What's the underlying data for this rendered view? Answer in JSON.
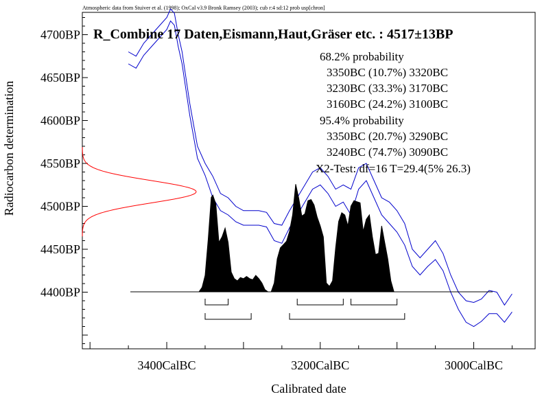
{
  "header_note": "Atmospheric data from Stuiver et al. (1998); OxCal v3.9 Bronk Ramsey (2003); cub r:4 sd:12 prob usp[chron]",
  "chart_data": {
    "type": "area",
    "title": "R_Combine 17 Daten,Eismann,Haut,Gräser etc. : 4517±13BP",
    "xlabel": "Calibrated date",
    "ylabel": "Radiocarbon determination",
    "x_ticks": [
      {
        "value": 3400,
        "label": "3400CalBC"
      },
      {
        "value": 3200,
        "label": "3200CalBC"
      },
      {
        "value": 3000,
        "label": "3000CalBC"
      }
    ],
    "y_ticks": [
      {
        "value": 4700,
        "label": "4700BP"
      },
      {
        "value": 4650,
        "label": "4650BP"
      },
      {
        "value": 4600,
        "label": "4600BP"
      },
      {
        "value": 4550,
        "label": "4550BP"
      },
      {
        "value": 4500,
        "label": "4500BP"
      },
      {
        "value": 4450,
        "label": "4450BP"
      },
      {
        "value": 4400,
        "label": "4400BP"
      }
    ],
    "xlim_calbc": [
      3510,
      2920
    ],
    "ylim_bp": [
      4334,
      4726
    ],
    "radiocarbon": {
      "mean_bp": 4517,
      "sd": 13
    },
    "annotations": [
      "68.2% probability",
      "3350BC (10.7%) 3320BC",
      "3230BC (33.3%) 3170BC",
      "3160BC (24.2%) 3100BC",
      "95.4% probability",
      "3350BC (20.7%) 3290BC",
      "3240BC (74.7%) 3090BC",
      "X2-Test: df=16 T=29.4(5% 26.3)"
    ],
    "calibration_curve": {
      "year_calbc": [
        3450,
        3440,
        3430,
        3420,
        3410,
        3400,
        3395,
        3390,
        3385,
        3380,
        3370,
        3360,
        3350,
        3340,
        3330,
        3320,
        3310,
        3300,
        3290,
        3280,
        3270,
        3260,
        3250,
        3240,
        3230,
        3220,
        3210,
        3200,
        3190,
        3180,
        3170,
        3160,
        3150,
        3140,
        3130,
        3120,
        3110,
        3100,
        3090,
        3080,
        3070,
        3060,
        3050,
        3040,
        3030,
        3020,
        3010,
        3000,
        2990,
        2980,
        2970,
        2960,
        2950
      ],
      "upper_bp": [
        4680,
        4675,
        4690,
        4700,
        4710,
        4720,
        4730,
        4725,
        4700,
        4680,
        4620,
        4570,
        4550,
        4535,
        4515,
        4510,
        4500,
        4495,
        4495,
        4495,
        4493,
        4480,
        4478,
        4495,
        4510,
        4525,
        4540,
        4545,
        4535,
        4520,
        4525,
        4520,
        4545,
        4550,
        4530,
        4510,
        4505,
        4495,
        4480,
        4450,
        4440,
        4450,
        4460,
        4445,
        4420,
        4400,
        4390,
        4388,
        4392,
        4402,
        4400,
        4385,
        4398
      ],
      "lower_bp": [
        4666,
        4661,
        4676,
        4686,
        4696,
        4706,
        4716,
        4711,
        4686,
        4666,
        4606,
        4556,
        4536,
        4510,
        4495,
        4490,
        4482,
        4478,
        4478,
        4478,
        4476,
        4460,
        4457,
        4475,
        4490,
        4505,
        4520,
        4525,
        4515,
        4500,
        4505,
        4490,
        4520,
        4530,
        4510,
        4490,
        4480,
        4470,
        4455,
        4430,
        4420,
        4430,
        4438,
        4425,
        4400,
        4380,
        4365,
        4360,
        4366,
        4375,
        4375,
        4365,
        4377
      ]
    },
    "posterior_density": {
      "year_calbc": [
        3370,
        3364,
        3358,
        3354,
        3350,
        3346,
        3342,
        3340,
        3336,
        3332,
        3328,
        3324,
        3320,
        3316,
        3312,
        3308,
        3304,
        3300,
        3296,
        3292,
        3288,
        3284,
        3280,
        3276,
        3272,
        3268,
        3264,
        3260,
        3256,
        3252,
        3248,
        3244,
        3240,
        3236,
        3232,
        3228,
        3224,
        3220,
        3216,
        3212,
        3208,
        3204,
        3200,
        3196,
        3192,
        3188,
        3184,
        3180,
        3176,
        3172,
        3168,
        3164,
        3160,
        3156,
        3152,
        3148,
        3144,
        3140,
        3136,
        3132,
        3128,
        3124,
        3120,
        3116,
        3112,
        3108,
        3104,
        3100,
        3096,
        3092
      ],
      "density": [
        0,
        0,
        0,
        0.04,
        0.15,
        0.48,
        0.86,
        0.88,
        0.8,
        0.45,
        0.5,
        0.58,
        0.45,
        0.18,
        0.12,
        0.1,
        0.13,
        0.12,
        0.14,
        0.12,
        0.11,
        0.15,
        0.12,
        0.08,
        0.02,
        0,
        0,
        0.08,
        0.3,
        0.4,
        0.43,
        0.46,
        0.55,
        0.7,
        0.98,
        0.85,
        0.69,
        0.71,
        0.83,
        0.84,
        0.79,
        0.68,
        0.6,
        0.5,
        0.08,
        0.05,
        0.1,
        0.4,
        0.64,
        0.72,
        0.7,
        0.6,
        0.78,
        0.83,
        0.82,
        0.81,
        0.55,
        0.66,
        0.7,
        0.5,
        0.34,
        0.35,
        0.6,
        0.45,
        0.3,
        0.1,
        0,
        0,
        0,
        0
      ]
    },
    "ranges_68": [
      [
        3350,
        3320
      ],
      [
        3230,
        3170
      ],
      [
        3160,
        3100
      ]
    ],
    "ranges_95": [
      [
        3350,
        3290
      ],
      [
        3240,
        3090
      ]
    ],
    "grid": false,
    "legend": "none"
  }
}
